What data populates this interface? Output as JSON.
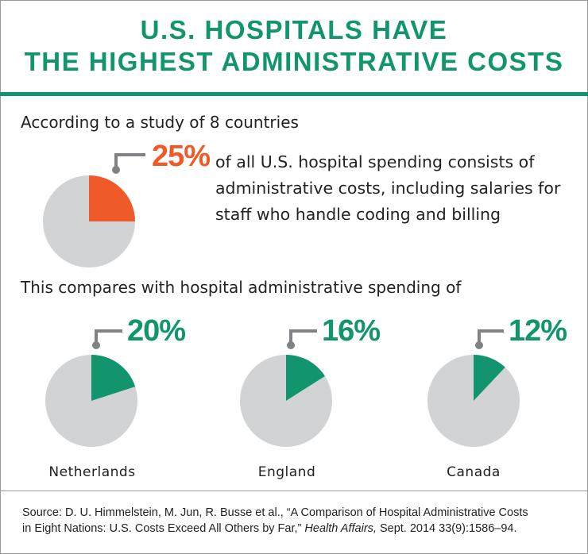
{
  "title_line1": "U.S. HOSPITALS HAVE",
  "title_line2": "THE HIGHEST ADMINISTRATIVE COSTS",
  "intro": "According to a study of 8 countries",
  "us": {
    "percent_label": "25%",
    "description": "of all U.S. hospital spending consists of administrative costs, including salaries for staff who handle coding and billing"
  },
  "comparison_intro": "This compares with hospital administrative spending of",
  "colors": {
    "accent": "#12956f",
    "us_slice": "#f05a28",
    "pie_rest": "#d2d3d5",
    "pointer": "#808285"
  },
  "chart_data": {
    "type": "pie",
    "unit": "%",
    "pies": [
      {
        "label": "U.S.",
        "value": 25,
        "value_label": "25%"
      },
      {
        "label": "Netherlands",
        "value": 20,
        "value_label": "20%"
      },
      {
        "label": "England",
        "value": 16,
        "value_label": "16%"
      },
      {
        "label": "Canada",
        "value": 12,
        "value_label": "12%"
      }
    ]
  },
  "source": {
    "line1": "Source: D. U. Himmelstein, M. Jun, R. Busse et al., “A Comparison of Hospital Administrative Costs",
    "line2_prefix": "in Eight Nations: U.S. Costs Exceed All Others by Far,” ",
    "journal": "Health Affairs,",
    "line2_suffix": " Sept. 2014 33(9):1586–94."
  }
}
